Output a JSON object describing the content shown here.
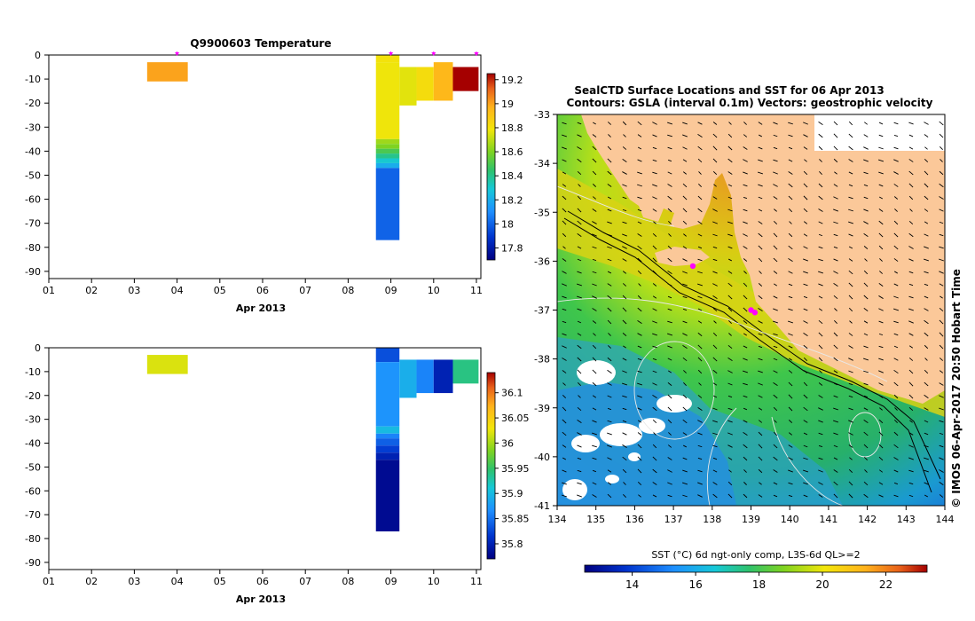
{
  "chart_data": [
    {
      "type": "heatmap",
      "title": "Q9900603  Temperature",
      "xlabel": "Apr 2013",
      "ylabel": "",
      "x_ticks": [
        "01",
        "02",
        "03",
        "04",
        "05",
        "06",
        "07",
        "08",
        "09",
        "10",
        "11"
      ],
      "y_ticks": [
        0,
        -10,
        -20,
        -30,
        -40,
        -50,
        -60,
        -70,
        -80,
        -90
      ],
      "xlim": [
        1,
        11
      ],
      "ylim": [
        -93,
        0
      ],
      "profile_markers_day": [
        4.0,
        9.0,
        10.0,
        11.0,
        11.0,
        11.0
      ],
      "colorbar": {
        "min": 17.7,
        "max": 19.25,
        "ticks": [
          19.2,
          19,
          18.8,
          18.6,
          18.4,
          18.2,
          18,
          17.8
        ]
      },
      "cells": [
        {
          "x0": 3.3,
          "x1": 4.25,
          "y0": 3,
          "y1": 11,
          "value": 19.0
        },
        {
          "x0": 8.65,
          "x1": 9.2,
          "y0": 0,
          "y1": 3,
          "value": 18.8
        },
        {
          "x0": 8.65,
          "x1": 9.2,
          "y0": 3,
          "y1": 35,
          "value": 18.78
        },
        {
          "x0": 8.65,
          "x1": 9.2,
          "y0": 35,
          "y1": 37,
          "value": 18.65
        },
        {
          "x0": 8.65,
          "x1": 9.2,
          "y0": 37,
          "y1": 39,
          "value": 18.6
        },
        {
          "x0": 8.65,
          "x1": 9.2,
          "y0": 39,
          "y1": 41,
          "value": 18.5
        },
        {
          "x0": 8.65,
          "x1": 9.2,
          "y0": 41,
          "y1": 43,
          "value": 18.4
        },
        {
          "x0": 8.65,
          "x1": 9.2,
          "y0": 43,
          "y1": 45,
          "value": 18.3
        },
        {
          "x0": 8.65,
          "x1": 9.2,
          "y0": 45,
          "y1": 47,
          "value": 18.2
        },
        {
          "x0": 8.65,
          "x1": 9.2,
          "y0": 47,
          "y1": 77,
          "value": 18.0
        },
        {
          "x0": 9.2,
          "x1": 9.6,
          "y0": 5,
          "y1": 21,
          "value": 18.76
        },
        {
          "x0": 9.6,
          "x1": 10.0,
          "y0": 5,
          "y1": 19,
          "value": 18.82
        },
        {
          "x0": 10.0,
          "x1": 10.45,
          "y0": 3,
          "y1": 19,
          "value": 18.95
        },
        {
          "x0": 10.45,
          "x1": 11.05,
          "y0": 5,
          "y1": 15,
          "value": 19.25
        }
      ]
    },
    {
      "type": "heatmap",
      "title": "",
      "xlabel": "Apr 2013",
      "ylabel": "",
      "x_ticks": [
        "01",
        "02",
        "03",
        "04",
        "05",
        "06",
        "07",
        "08",
        "09",
        "10",
        "11"
      ],
      "y_ticks": [
        0,
        -10,
        -20,
        -30,
        -40,
        -50,
        -60,
        -70,
        -80,
        -90
      ],
      "xlim": [
        1,
        11
      ],
      "ylim": [
        -93,
        0
      ],
      "colorbar": {
        "min": 35.77,
        "max": 36.14,
        "ticks": [
          36.1,
          36.05,
          36,
          35.95,
          35.9,
          35.85,
          35.8
        ]
      },
      "cells": [
        {
          "x0": 3.3,
          "x1": 4.25,
          "y0": 3,
          "y1": 11,
          "value": 36.02
        },
        {
          "x0": 8.65,
          "x1": 9.2,
          "y0": 0,
          "y1": 6,
          "value": 35.83
        },
        {
          "x0": 8.65,
          "x1": 9.2,
          "y0": 6,
          "y1": 33,
          "value": 35.87
        },
        {
          "x0": 8.65,
          "x1": 9.2,
          "y0": 33,
          "y1": 36,
          "value": 35.9
        },
        {
          "x0": 8.65,
          "x1": 9.2,
          "y0": 36,
          "y1": 38,
          "value": 35.86
        },
        {
          "x0": 8.65,
          "x1": 9.2,
          "y0": 38,
          "y1": 41,
          "value": 35.84
        },
        {
          "x0": 8.65,
          "x1": 9.2,
          "y0": 41,
          "y1": 44,
          "value": 35.82
        },
        {
          "x0": 8.65,
          "x1": 9.2,
          "y0": 44,
          "y1": 47,
          "value": 35.8
        },
        {
          "x0": 8.65,
          "x1": 9.2,
          "y0": 47,
          "y1": 77,
          "value": 35.78
        },
        {
          "x0": 9.2,
          "x1": 9.6,
          "y0": 5,
          "y1": 21,
          "value": 35.89
        },
        {
          "x0": 9.6,
          "x1": 10.0,
          "y0": 5,
          "y1": 19,
          "value": 35.86
        },
        {
          "x0": 10.0,
          "x1": 10.45,
          "y0": 5,
          "y1": 19,
          "value": 35.8
        },
        {
          "x0": 10.45,
          "x1": 11.05,
          "y0": 5,
          "y1": 15,
          "value": 35.94
        }
      ]
    },
    {
      "type": "map",
      "title": "SealCTD Surface Locations and SST for 06 Apr 2013",
      "subtitle": "Contours: GSLA (interval 0.1m)  Vectors: geostrophic velocity",
      "x_ticks": [
        134,
        135,
        136,
        137,
        138,
        139,
        140,
        141,
        142,
        143,
        144
      ],
      "y_ticks": [
        -33,
        -34,
        -35,
        -36,
        -37,
        -38,
        -39,
        -40,
        -41
      ],
      "xlim": [
        134,
        144
      ],
      "ylim": [
        -41,
        -33
      ],
      "side_label": "© IMOS 06-Apr-2017 20:50 Hobart Time",
      "colorbar": {
        "label": "SST (°C) 6d ngt-only comp, L3S-6d QL>=2",
        "min": 12.5,
        "max": 23.3,
        "ticks": [
          14,
          16,
          18,
          20,
          22
        ]
      },
      "locations": [
        {
          "lon": 137.5,
          "lat": -36.1
        },
        {
          "lon": 139.0,
          "lat": -37.0
        },
        {
          "lon": 139.1,
          "lat": -37.05
        }
      ]
    }
  ],
  "colors": {
    "land": "#fbc899",
    "location_marker": "#ff00ff",
    "cloud_mask": "#ffffff"
  }
}
